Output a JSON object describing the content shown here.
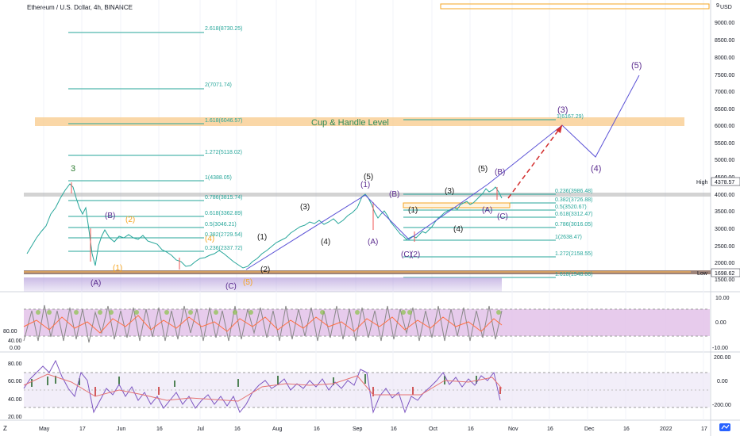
{
  "header": {
    "symbol_title": "Ethereum / U.S. Dollar, 4h, BINANCE",
    "currency": "USD",
    "corner_tick": "9"
  },
  "price_axis": {
    "ticks": [
      "9000.00",
      "8500.00",
      "8000.00",
      "7500.00",
      "7000.00",
      "6500.00",
      "6000.00",
      "5500.00",
      "5000.00",
      "4500.00",
      "4000.00",
      "3500.00",
      "3000.00",
      "2500.00",
      "2000.00",
      "1500.00"
    ],
    "high_label": "High",
    "high_value": "4378.57",
    "low_label": "Low",
    "low_value": "1698.62"
  },
  "time_axis": {
    "ticks": [
      "May",
      "17",
      "Jun",
      "16",
      "Jul",
      "16",
      "Aug",
      "16",
      "Sep",
      "16",
      "Oct",
      "16",
      "Nov",
      "16",
      "Dec",
      "16",
      "2022",
      "17"
    ]
  },
  "annotations": {
    "cup_handle": "Cup & Handle Level",
    "fib_levels_left": [
      "2.618(8730.25)",
      "2(7071.74)",
      "1.618(6046.57)",
      "1.272(5118.02)",
      "1(4388.05)",
      "0.786(3815.74)",
      "0.618(3362.89)",
      "0.5(3046.21)",
      "0.382(2729.54)",
      "0.236(2337.72)"
    ],
    "fib_levels_right": [
      "1(6167.29)",
      "0.236(3986.48)",
      "0.382(3726.88)",
      "0.5(3520.67)",
      "0.618(3312.47)",
      "0.786(3016.05)",
      "1(2638.47)",
      "1.272(2158.55)",
      "1.618(1548.06)"
    ],
    "waves": [
      "3",
      "(B)",
      "(2)",
      "(1)",
      "(A)",
      "(4)",
      "(C)",
      "(5)",
      "(2)",
      "(1)",
      "(3)",
      "(4)",
      "(5)",
      "(1)",
      "(A)",
      "(B)",
      "(C)",
      "(2)",
      "(1)",
      "(3)",
      "(4)",
      "(5)",
      "(A)",
      "(B)",
      "(C)",
      "(3)",
      "(4)",
      "(5)"
    ]
  },
  "stoch_panel": {
    "left_ticks": [
      "80.00",
      "40.00",
      "0.00"
    ],
    "right_ticks": [
      "10.00",
      "0.00",
      "-10.00"
    ]
  },
  "rsi_panel": {
    "left_ticks": [
      "80.00",
      "60.00",
      "40.00",
      "20.00"
    ],
    "right_ticks": [
      "200.00",
      "0.00",
      "-200.00"
    ]
  },
  "colors": {
    "fib_line": "#26a69a",
    "wave_purple": "#5b2c8f",
    "wave_green": "#2e7d32",
    "wave_orange": "#f5a623",
    "forecast_line": "#5b52d6",
    "red_dash": "#d32f2f",
    "band": "#f8c98a"
  },
  "bottom_controls": [
    "Z"
  ]
}
